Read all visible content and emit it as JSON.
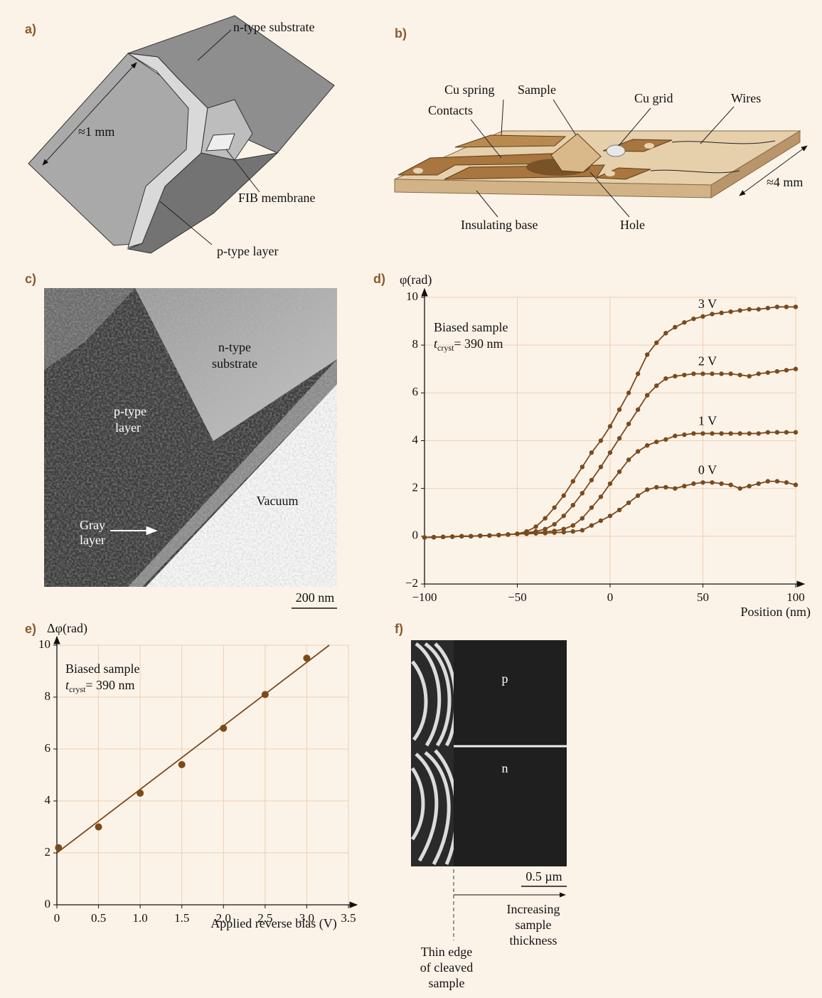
{
  "panels": {
    "a": {
      "label": "a)",
      "n_type": "n-type substrate",
      "length": "≈1 mm",
      "membrane": "FIB membrane",
      "p_type": "p-type layer"
    },
    "b": {
      "label": "b)",
      "cu_spring": "Cu spring",
      "sample": "Sample",
      "cu_grid": "Cu grid",
      "wires": "Wires",
      "contacts": "Contacts",
      "width": "≈4 mm",
      "base": "Insulating base",
      "hole": "Hole"
    },
    "c": {
      "label": "c)",
      "n_type": [
        "n-type",
        "substrate"
      ],
      "p_type": [
        "p-type",
        "layer"
      ],
      "vacuum": "Vacuum",
      "gray_layer": [
        "Gray",
        "layer"
      ],
      "scale": "200 nm"
    },
    "f": {
      "label": "f)",
      "p": "p",
      "n": "n",
      "scale": "0.5 µm",
      "thickness": [
        "Increasing",
        "sample",
        "thickness"
      ],
      "edge": [
        "Thin edge",
        "of cleaved",
        "sample"
      ]
    }
  },
  "chart_data": [
    {
      "type": "line",
      "panel_label": "d)",
      "xlabel": "Position (nm)",
      "ylabel": "φ(rad)",
      "annotation": {
        "line1": "Biased sample",
        "t": "t",
        "sub": "cryst",
        "rest": "= 390 nm"
      },
      "x": [
        -100,
        -95,
        -90,
        -85,
        -80,
        -75,
        -70,
        -65,
        -60,
        -55,
        -50,
        -45,
        -40,
        -35,
        -30,
        -25,
        -20,
        -15,
        -10,
        -5,
        0,
        5,
        10,
        15,
        20,
        25,
        30,
        35,
        40,
        45,
        50,
        55,
        60,
        65,
        70,
        75,
        80,
        85,
        90,
        95,
        100
      ],
      "series": [
        {
          "name": "3 V",
          "color": "#7b4a1c",
          "values": [
            -0.05,
            -0.04,
            -0.03,
            -0.02,
            0,
            0,
            0.02,
            0.03,
            0.05,
            0.07,
            0.1,
            0.2,
            0.4,
            0.75,
            1.2,
            1.7,
            2.3,
            2.9,
            3.5,
            4.0,
            4.6,
            5.3,
            6.0,
            6.8,
            7.6,
            8.1,
            8.5,
            8.75,
            8.95,
            9.1,
            9.2,
            9.3,
            9.35,
            9.4,
            9.45,
            9.5,
            9.5,
            9.55,
            9.6,
            9.6,
            9.6
          ]
        },
        {
          "name": "2 V",
          "color": "#7b4a1c",
          "values": [
            -0.05,
            -0.04,
            -0.03,
            -0.02,
            0,
            0,
            0.02,
            0.03,
            0.05,
            0.07,
            0.1,
            0.15,
            0.2,
            0.3,
            0.5,
            0.85,
            1.3,
            1.8,
            2.35,
            2.9,
            3.5,
            4.1,
            4.7,
            5.3,
            5.9,
            6.3,
            6.6,
            6.7,
            6.75,
            6.8,
            6.8,
            6.8,
            6.8,
            6.8,
            6.75,
            6.7,
            6.8,
            6.85,
            6.9,
            6.95,
            7.0
          ]
        },
        {
          "name": "1 V",
          "color": "#7b4a1c",
          "values": [
            -0.05,
            -0.04,
            -0.03,
            -0.02,
            0,
            0,
            0.02,
            0.03,
            0.05,
            0.07,
            0.1,
            0.12,
            0.15,
            0.18,
            0.22,
            0.3,
            0.45,
            0.75,
            1.2,
            1.65,
            2.2,
            2.7,
            3.2,
            3.55,
            3.8,
            3.95,
            4.05,
            4.2,
            4.25,
            4.3,
            4.3,
            4.3,
            4.3,
            4.3,
            4.3,
            4.3,
            4.3,
            4.35,
            4.35,
            4.35,
            4.35
          ]
        },
        {
          "name": "0 V",
          "color": "#7b4a1c",
          "values": [
            -0.05,
            -0.04,
            -0.03,
            -0.02,
            0,
            0,
            0.02,
            0.03,
            0.05,
            0.07,
            0.1,
            0.1,
            0.12,
            0.13,
            0.15,
            0.17,
            0.2,
            0.25,
            0.45,
            0.65,
            0.85,
            1.1,
            1.4,
            1.7,
            1.95,
            2.05,
            2.05,
            2.0,
            2.1,
            2.2,
            2.25,
            2.25,
            2.2,
            2.15,
            2.0,
            2.1,
            2.2,
            2.3,
            2.3,
            2.25,
            2.15
          ]
        }
      ],
      "markers": true,
      "grid": true,
      "xlim": [
        -100,
        100
      ],
      "ylim": [
        -2,
        10
      ],
      "xticks": [
        {
          "value": -100,
          "label": "−100"
        },
        {
          "value": -50,
          "label": "−50"
        },
        0,
        50,
        100
      ],
      "yticks": [
        {
          "value": -2,
          "label": "−2"
        },
        0,
        2,
        4,
        6,
        8,
        10
      ]
    },
    {
      "type": "scatter",
      "panel_label": "e)",
      "xlabel": "Applied reverse bias (V)",
      "ylabel": "Δφ(rad)",
      "annotation": {
        "line1": "Biased sample",
        "t": "t",
        "sub": "cryst",
        "rest": "= 390 nm"
      },
      "series": [
        {
          "color": "#7b4a1c",
          "markers": true,
          "x": [
            0.02,
            0.5,
            1.0,
            1.5,
            2.0,
            2.5,
            3.0
          ],
          "values": [
            2.2,
            3.0,
            4.3,
            5.4,
            6.8,
            8.1,
            9.5
          ]
        },
        {
          "color": "#7b4a1c",
          "markers": false,
          "x": [
            0,
            3.27
          ],
          "values": [
            2.0,
            10
          ]
        }
      ],
      "grid": true,
      "xlim": [
        0,
        3.5
      ],
      "ylim": [
        0,
        10
      ],
      "xticks": [
        0,
        0.5,
        {
          "value": 1,
          "label": "1.0"
        },
        1.5,
        {
          "value": 2,
          "label": "2.0"
        },
        2.5,
        {
          "value": 3,
          "label": "3.0"
        },
        3.5
      ],
      "yticks": [
        0,
        2,
        4,
        6,
        8,
        10
      ]
    }
  ]
}
